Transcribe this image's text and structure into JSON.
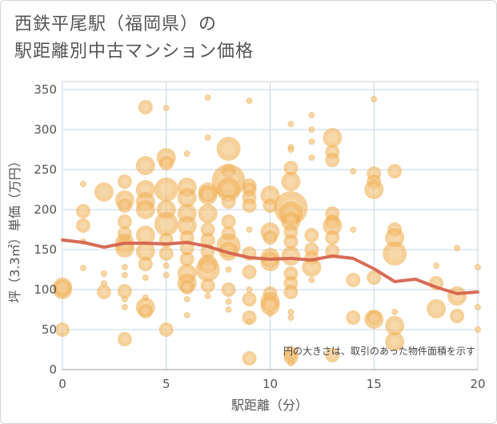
{
  "chart_title": "西鉄平尾駅（福岡県）の\n駅距離別中古マンション価格",
  "chart_data": {
    "type": "scatter",
    "title": "西鉄平尾駅（福岡県）の駅距離別中古マンション価格",
    "xlabel": "駅距離（分）",
    "ylabel": "坪（3.3㎡）単価（万円）",
    "xlim": [
      0,
      20
    ],
    "ylim": [
      0,
      360
    ],
    "x_ticks": [
      "0",
      "5",
      "10",
      "15",
      "20"
    ],
    "y_ticks": [
      "0",
      "50",
      "100",
      "150",
      "200",
      "250",
      "300",
      "350"
    ],
    "grid": true,
    "annotation": "円の大きさは、取引のあった物件面積を示す",
    "bubble_color": "#f0b35a",
    "line_color": "#d4614a",
    "trend_line": {
      "x": [
        0,
        1,
        2,
        3,
        4,
        5,
        6,
        7,
        8,
        9,
        10,
        11,
        12,
        13,
        14,
        15,
        16,
        17,
        18,
        19,
        20
      ],
      "y": [
        162,
        159,
        153,
        158,
        158,
        157,
        159,
        154,
        146,
        140,
        138,
        139,
        137,
        142,
        139,
        126,
        110,
        113,
        103,
        95,
        97
      ]
    },
    "points": [
      {
        "x": 0,
        "y": 100,
        "s": 3
      },
      {
        "x": 0,
        "y": 103,
        "s": 3
      },
      {
        "x": 0,
        "y": 50,
        "s": 2
      },
      {
        "x": 1,
        "y": 198,
        "s": 2
      },
      {
        "x": 1,
        "y": 180,
        "s": 2
      },
      {
        "x": 1,
        "y": 232,
        "s": 1
      },
      {
        "x": 1,
        "y": 127,
        "s": 1
      },
      {
        "x": 1,
        "y": 160,
        "s": 1
      },
      {
        "x": 2,
        "y": 222,
        "s": 3
      },
      {
        "x": 2,
        "y": 97,
        "s": 2
      },
      {
        "x": 2,
        "y": 120,
        "s": 1
      },
      {
        "x": 2,
        "y": 108,
        "s": 1
      },
      {
        "x": 3,
        "y": 235,
        "s": 2
      },
      {
        "x": 3,
        "y": 212,
        "s": 3
      },
      {
        "x": 3,
        "y": 205,
        "s": 2
      },
      {
        "x": 3,
        "y": 185,
        "s": 2
      },
      {
        "x": 3,
        "y": 170,
        "s": 2
      },
      {
        "x": 3,
        "y": 158,
        "s": 3
      },
      {
        "x": 3,
        "y": 152,
        "s": 3
      },
      {
        "x": 3,
        "y": 128,
        "s": 1
      },
      {
        "x": 3,
        "y": 118,
        "s": 1
      },
      {
        "x": 3,
        "y": 98,
        "s": 2
      },
      {
        "x": 3,
        "y": 88,
        "s": 1
      },
      {
        "x": 3,
        "y": 78,
        "s": 1
      },
      {
        "x": 3,
        "y": 38,
        "s": 2
      },
      {
        "x": 4,
        "y": 328,
        "s": 2
      },
      {
        "x": 4,
        "y": 255,
        "s": 3
      },
      {
        "x": 4,
        "y": 225,
        "s": 3
      },
      {
        "x": 4,
        "y": 210,
        "s": 3
      },
      {
        "x": 4,
        "y": 200,
        "s": 3
      },
      {
        "x": 4,
        "y": 168,
        "s": 3
      },
      {
        "x": 4,
        "y": 148,
        "s": 3
      },
      {
        "x": 4,
        "y": 132,
        "s": 2
      },
      {
        "x": 4,
        "y": 115,
        "s": 1
      },
      {
        "x": 4,
        "y": 90,
        "s": 1
      },
      {
        "x": 4,
        "y": 78,
        "s": 3
      },
      {
        "x": 4,
        "y": 73,
        "s": 2
      },
      {
        "x": 5,
        "y": 327,
        "s": 1
      },
      {
        "x": 5,
        "y": 265,
        "s": 3
      },
      {
        "x": 5,
        "y": 258,
        "s": 2
      },
      {
        "x": 5,
        "y": 225,
        "s": 4
      },
      {
        "x": 5,
        "y": 200,
        "s": 3
      },
      {
        "x": 5,
        "y": 182,
        "s": 4
      },
      {
        "x": 5,
        "y": 162,
        "s": 2
      },
      {
        "x": 5,
        "y": 145,
        "s": 2
      },
      {
        "x": 5,
        "y": 130,
        "s": 1
      },
      {
        "x": 5,
        "y": 118,
        "s": 1
      },
      {
        "x": 5,
        "y": 50,
        "s": 2
      },
      {
        "x": 6,
        "y": 270,
        "s": 1
      },
      {
        "x": 6,
        "y": 228,
        "s": 3
      },
      {
        "x": 6,
        "y": 215,
        "s": 3
      },
      {
        "x": 6,
        "y": 195,
        "s": 3
      },
      {
        "x": 6,
        "y": 180,
        "s": 3
      },
      {
        "x": 6,
        "y": 165,
        "s": 2
      },
      {
        "x": 6,
        "y": 152,
        "s": 2
      },
      {
        "x": 6,
        "y": 138,
        "s": 2
      },
      {
        "x": 6,
        "y": 120,
        "s": 3
      },
      {
        "x": 6,
        "y": 108,
        "s": 3
      },
      {
        "x": 6,
        "y": 103,
        "s": 2
      },
      {
        "x": 6,
        "y": 88,
        "s": 1
      },
      {
        "x": 6,
        "y": 68,
        "s": 1
      },
      {
        "x": 7,
        "y": 340,
        "s": 1
      },
      {
        "x": 7,
        "y": 290,
        "s": 1
      },
      {
        "x": 7,
        "y": 222,
        "s": 3
      },
      {
        "x": 7,
        "y": 218,
        "s": 3
      },
      {
        "x": 7,
        "y": 195,
        "s": 3
      },
      {
        "x": 7,
        "y": 175,
        "s": 2
      },
      {
        "x": 7,
        "y": 162,
        "s": 2
      },
      {
        "x": 7,
        "y": 148,
        "s": 2
      },
      {
        "x": 7,
        "y": 132,
        "s": 3
      },
      {
        "x": 7,
        "y": 125,
        "s": 4
      },
      {
        "x": 7,
        "y": 105,
        "s": 2
      },
      {
        "x": 7,
        "y": 92,
        "s": 1
      },
      {
        "x": 8,
        "y": 276,
        "s": 4
      },
      {
        "x": 8,
        "y": 248,
        "s": 2
      },
      {
        "x": 8,
        "y": 236,
        "s": 5
      },
      {
        "x": 8,
        "y": 225,
        "s": 4
      },
      {
        "x": 8,
        "y": 210,
        "s": 2
      },
      {
        "x": 8,
        "y": 185,
        "s": 2
      },
      {
        "x": 8,
        "y": 170,
        "s": 2
      },
      {
        "x": 8,
        "y": 155,
        "s": 4
      },
      {
        "x": 8,
        "y": 148,
        "s": 3
      },
      {
        "x": 8,
        "y": 125,
        "s": 1
      },
      {
        "x": 8,
        "y": 100,
        "s": 2
      },
      {
        "x": 8,
        "y": 85,
        "s": 1
      },
      {
        "x": 8,
        "y": 75,
        "s": 1
      },
      {
        "x": 9,
        "y": 336,
        "s": 1
      },
      {
        "x": 9,
        "y": 230,
        "s": 2
      },
      {
        "x": 9,
        "y": 225,
        "s": 2
      },
      {
        "x": 9,
        "y": 215,
        "s": 2
      },
      {
        "x": 9,
        "y": 205,
        "s": 2
      },
      {
        "x": 9,
        "y": 175,
        "s": 1
      },
      {
        "x": 9,
        "y": 145,
        "s": 2
      },
      {
        "x": 9,
        "y": 122,
        "s": 2
      },
      {
        "x": 9,
        "y": 100,
        "s": 1
      },
      {
        "x": 9,
        "y": 88,
        "s": 2
      },
      {
        "x": 9,
        "y": 65,
        "s": 2
      },
      {
        "x": 9,
        "y": 60,
        "s": 1
      },
      {
        "x": 9,
        "y": 14,
        "s": 2
      },
      {
        "x": 10,
        "y": 218,
        "s": 3
      },
      {
        "x": 10,
        "y": 205,
        "s": 2
      },
      {
        "x": 10,
        "y": 172,
        "s": 3
      },
      {
        "x": 10,
        "y": 165,
        "s": 2
      },
      {
        "x": 10,
        "y": 140,
        "s": 3
      },
      {
        "x": 10,
        "y": 135,
        "s": 3
      },
      {
        "x": 10,
        "y": 95,
        "s": 2
      },
      {
        "x": 10,
        "y": 85,
        "s": 3
      },
      {
        "x": 10,
        "y": 80,
        "s": 3
      },
      {
        "x": 10,
        "y": 70,
        "s": 1
      },
      {
        "x": 11,
        "y": 307,
        "s": 1
      },
      {
        "x": 11,
        "y": 278,
        "s": 1
      },
      {
        "x": 11,
        "y": 275,
        "s": 1
      },
      {
        "x": 11,
        "y": 252,
        "s": 2
      },
      {
        "x": 11,
        "y": 235,
        "s": 3
      },
      {
        "x": 11,
        "y": 202,
        "s": 5
      },
      {
        "x": 11,
        "y": 195,
        "s": 4
      },
      {
        "x": 11,
        "y": 185,
        "s": 3
      },
      {
        "x": 11,
        "y": 172,
        "s": 2
      },
      {
        "x": 11,
        "y": 160,
        "s": 2
      },
      {
        "x": 11,
        "y": 142,
        "s": 3
      },
      {
        "x": 11,
        "y": 120,
        "s": 2
      },
      {
        "x": 11,
        "y": 108,
        "s": 2
      },
      {
        "x": 11,
        "y": 97,
        "s": 2
      },
      {
        "x": 11,
        "y": 72,
        "s": 1
      },
      {
        "x": 11,
        "y": 65,
        "s": 1
      },
      {
        "x": 11,
        "y": 20,
        "s": 2
      },
      {
        "x": 11,
        "y": 15,
        "s": 2
      },
      {
        "x": 11,
        "y": 12,
        "s": 1
      },
      {
        "x": 11,
        "y": 8,
        "s": 1
      },
      {
        "x": 12,
        "y": 318,
        "s": 1
      },
      {
        "x": 12,
        "y": 300,
        "s": 1
      },
      {
        "x": 12,
        "y": 285,
        "s": 1
      },
      {
        "x": 12,
        "y": 265,
        "s": 1
      },
      {
        "x": 12,
        "y": 168,
        "s": 2
      },
      {
        "x": 12,
        "y": 150,
        "s": 2
      },
      {
        "x": 12,
        "y": 140,
        "s": 2
      },
      {
        "x": 12,
        "y": 128,
        "s": 3
      },
      {
        "x": 12,
        "y": 112,
        "s": 1
      },
      {
        "x": 13,
        "y": 290,
        "s": 3
      },
      {
        "x": 13,
        "y": 272,
        "s": 2
      },
      {
        "x": 13,
        "y": 262,
        "s": 2
      },
      {
        "x": 13,
        "y": 195,
        "s": 2
      },
      {
        "x": 13,
        "y": 185,
        "s": 2
      },
      {
        "x": 13,
        "y": 180,
        "s": 3
      },
      {
        "x": 13,
        "y": 165,
        "s": 2
      },
      {
        "x": 13,
        "y": 148,
        "s": 2
      },
      {
        "x": 13,
        "y": 18,
        "s": 2
      },
      {
        "x": 14,
        "y": 248,
        "s": 1
      },
      {
        "x": 14,
        "y": 175,
        "s": 1
      },
      {
        "x": 14,
        "y": 112,
        "s": 2
      },
      {
        "x": 14,
        "y": 65,
        "s": 2
      },
      {
        "x": 15,
        "y": 338,
        "s": 1
      },
      {
        "x": 15,
        "y": 245,
        "s": 2
      },
      {
        "x": 15,
        "y": 235,
        "s": 2
      },
      {
        "x": 15,
        "y": 225,
        "s": 3
      },
      {
        "x": 15,
        "y": 115,
        "s": 2
      },
      {
        "x": 15,
        "y": 65,
        "s": 2
      },
      {
        "x": 15,
        "y": 63,
        "s": 3
      },
      {
        "x": 16,
        "y": 248,
        "s": 2
      },
      {
        "x": 16,
        "y": 175,
        "s": 2
      },
      {
        "x": 16,
        "y": 165,
        "s": 3
      },
      {
        "x": 16,
        "y": 145,
        "s": 4
      },
      {
        "x": 16,
        "y": 72,
        "s": 1
      },
      {
        "x": 16,
        "y": 55,
        "s": 3
      },
      {
        "x": 16,
        "y": 35,
        "s": 3
      },
      {
        "x": 18,
        "y": 130,
        "s": 1
      },
      {
        "x": 18,
        "y": 108,
        "s": 2
      },
      {
        "x": 18,
        "y": 76,
        "s": 3
      },
      {
        "x": 19,
        "y": 152,
        "s": 1
      },
      {
        "x": 19,
        "y": 92,
        "s": 3
      },
      {
        "x": 19,
        "y": 67,
        "s": 2
      },
      {
        "x": 20,
        "y": 128,
        "s": 1
      },
      {
        "x": 20,
        "y": 78,
        "s": 1
      },
      {
        "x": 20,
        "y": 50,
        "s": 1
      }
    ]
  }
}
